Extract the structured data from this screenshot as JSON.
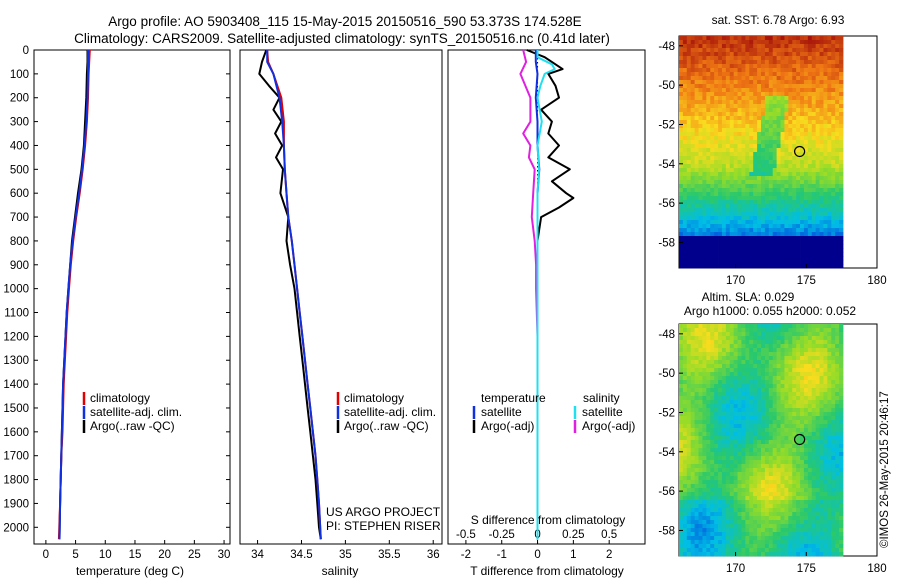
{
  "header": {
    "line1": "Argo profile: AO 5903408_115 15-May-2015 20150516_590 53.373S 174.528E",
    "line2": "Climatology: CARS2009. Satellite-adjusted climatology: synTS_20150516.nc (0.41d later)"
  },
  "side_caption": "©IMOS 26-May-2015 20:46:17",
  "depth_ticks": [
    0,
    100,
    200,
    300,
    400,
    500,
    600,
    700,
    800,
    900,
    1000,
    1100,
    1200,
    1300,
    1400,
    1500,
    1600,
    1700,
    1800,
    1900,
    2000
  ],
  "colors": {
    "climatology": "#e00000",
    "satellite": "#1030e0",
    "argo": "#000000",
    "satellite_s": "#20e0f0",
    "argo_s": "#e020e0"
  },
  "chart_data": [
    {
      "type": "line",
      "panel": "temperature",
      "xlabel": "temperature (deg C)",
      "xlim": [
        -2,
        31
      ],
      "xticks": [
        0,
        5,
        10,
        15,
        20,
        25,
        30
      ],
      "ylim": [
        0,
        2070
      ],
      "legend": [
        "climatology",
        "satellite-adj. clim.",
        "Argo(..raw -QC)"
      ],
      "legend_position": "lower-middle",
      "series": [
        {
          "name": "climatology",
          "color_key": "climatology",
          "x": [
            7.4,
            7.3,
            7.2,
            7.1,
            6.9,
            6.6,
            6.2,
            5.7,
            5.1,
            4.6,
            4.2,
            3.9,
            3.6,
            3.4,
            3.2,
            3.0,
            2.9,
            2.8,
            2.6,
            2.5,
            2.4,
            2.2
          ],
          "y": [
            0,
            50,
            100,
            200,
            300,
            400,
            500,
            600,
            700,
            800,
            900,
            1000,
            1100,
            1200,
            1300,
            1400,
            1500,
            1600,
            1700,
            1800,
            1900,
            2050
          ]
        },
        {
          "name": "satellite-adj. clim.",
          "color_key": "satellite",
          "x": [
            7.1,
            7.1,
            7.1,
            7.0,
            6.8,
            6.5,
            6.1,
            5.6,
            5.0,
            4.5,
            4.1,
            3.8,
            3.5,
            3.3,
            3.1,
            2.9,
            2.8,
            2.7,
            2.6,
            2.5,
            2.4,
            2.3
          ],
          "y": [
            0,
            50,
            100,
            200,
            300,
            400,
            500,
            600,
            700,
            800,
            900,
            1000,
            1100,
            1200,
            1300,
            1400,
            1500,
            1600,
            1700,
            1800,
            1900,
            2050
          ]
        },
        {
          "name": "Argo(..raw -QC)",
          "color_key": "argo",
          "x": [
            7.0,
            7.0,
            6.9,
            6.8,
            6.6,
            6.4,
            6.0,
            5.4,
            4.9,
            4.4,
            4.1,
            3.8,
            3.5,
            3.3,
            3.1,
            2.9,
            2.8,
            2.7,
            2.6,
            2.5,
            2.4,
            2.3
          ],
          "y": [
            0,
            50,
            100,
            200,
            300,
            400,
            500,
            600,
            700,
            800,
            900,
            1000,
            1100,
            1200,
            1300,
            1400,
            1500,
            1600,
            1700,
            1800,
            1900,
            2050
          ]
        }
      ]
    },
    {
      "type": "line",
      "panel": "salinity",
      "xlabel": "salinity",
      "xlim": [
        33.8,
        36.1
      ],
      "xticks": [
        34,
        34.5,
        35,
        35.5,
        36
      ],
      "ylim": [
        0,
        2070
      ],
      "legend": [
        "climatology",
        "satellite-adj. clim.",
        "Argo(..raw -QC)"
      ],
      "legend_position": "lower-middle",
      "annotation": [
        "US ARGO PROJECT",
        "PI: STEPHEN RISER"
      ],
      "series": [
        {
          "name": "climatology",
          "color_key": "climatology",
          "x": [
            34.11,
            34.12,
            34.18,
            34.27,
            34.3,
            34.3,
            34.31,
            34.33,
            34.35,
            34.39,
            34.42,
            34.45,
            34.48,
            34.51,
            34.54,
            34.57,
            34.6,
            34.63,
            34.66,
            34.68,
            34.7,
            34.72
          ],
          "y": [
            0,
            50,
            100,
            200,
            300,
            400,
            500,
            600,
            700,
            800,
            900,
            1000,
            1100,
            1200,
            1300,
            1400,
            1500,
            1600,
            1700,
            1800,
            1900,
            2050
          ]
        },
        {
          "name": "satellite-adj. clim.",
          "color_key": "satellite",
          "x": [
            34.11,
            34.11,
            34.18,
            34.25,
            34.28,
            34.3,
            34.31,
            34.33,
            34.35,
            34.39,
            34.42,
            34.45,
            34.48,
            34.51,
            34.54,
            34.57,
            34.6,
            34.63,
            34.66,
            34.68,
            34.7,
            34.72
          ],
          "y": [
            0,
            50,
            100,
            200,
            300,
            400,
            500,
            600,
            700,
            800,
            900,
            1000,
            1100,
            1200,
            1300,
            1400,
            1500,
            1600,
            1700,
            1800,
            1900,
            2050
          ]
        },
        {
          "name": "Argo(..raw -QC)",
          "color_key": "argo",
          "x": [
            34.1,
            34.05,
            34.02,
            34.13,
            34.25,
            34.18,
            34.27,
            34.2,
            34.28,
            34.21,
            34.29,
            34.26,
            34.35,
            34.33,
            34.37,
            34.42,
            34.45,
            34.48,
            34.51,
            34.54,
            34.57,
            34.6,
            34.63,
            34.66,
            34.68,
            34.7,
            34.72
          ],
          "y": [
            0,
            50,
            100,
            150,
            200,
            250,
            300,
            350,
            400,
            450,
            500,
            600,
            700,
            800,
            900,
            1000,
            1100,
            1200,
            1300,
            1400,
            1500,
            1600,
            1700,
            1800,
            1900,
            2000,
            2050
          ]
        }
      ]
    },
    {
      "type": "line",
      "panel": "difference",
      "xlabel": "T difference from climatology",
      "xlabel_top": "S difference from climatology",
      "xlim_T": [
        -2.5,
        3
      ],
      "xticks_T": [
        -2,
        -1,
        0,
        1,
        2
      ],
      "xlim_S": [
        -0.625,
        0.75
      ],
      "xticks_S": [
        -0.5,
        -0.25,
        0,
        0.25,
        0.5
      ],
      "xticklabels_S": [
        "-0.5",
        "-0.25",
        "0",
        "0.25",
        "0.5"
      ],
      "ylim": [
        0,
        2070
      ],
      "legend_left_title": "temperature",
      "legend_right_title": "salinity",
      "legend_left": [
        "satellite",
        "Argo(-adj)"
      ],
      "legend_right": [
        "satellite",
        "Argo(-adj)"
      ],
      "legend_position": "lower-middle",
      "series": [
        {
          "name": "temperature satellite",
          "color_key": "satellite",
          "axis": "T",
          "x": [
            -0.05,
            -0.05,
            0.0,
            -0.05,
            0.0,
            0.0,
            0.05,
            0.0,
            0.0,
            0.0,
            0.0,
            0.0,
            0.0,
            0.0,
            0.0,
            0.0,
            0.0,
            0.0,
            0.0,
            0.0,
            0.0
          ],
          "y": [
            0,
            50,
            100,
            200,
            300,
            400,
            500,
            600,
            700,
            800,
            900,
            1000,
            1100,
            1200,
            1300,
            1400,
            1500,
            1600,
            1700,
            1800,
            2050
          ]
        },
        {
          "name": "temperature Argo(-adj)",
          "color_key": "argo",
          "axis": "T",
          "x": [
            -0.3,
            0.2,
            0.7,
            0.3,
            0.5,
            0.6,
            0.1,
            0.4,
            0.3,
            0.6,
            0.3,
            0.9,
            0.4,
            0.8,
            1.0,
            0.6,
            0.1,
            0.0,
            0.0,
            0.0,
            0.0,
            0.0,
            0.0
          ],
          "y": [
            0,
            30,
            80,
            100,
            150,
            200,
            250,
            300,
            350,
            400,
            450,
            500,
            550,
            600,
            620,
            660,
            700,
            800,
            900,
            1000,
            1200,
            1600,
            2050
          ]
        },
        {
          "name": "salinity satellite",
          "color_key": "satellite_s",
          "axis": "S",
          "x": [
            0.0,
            0.0,
            0.1,
            0.12,
            0.05,
            0.02,
            0.0,
            0.03,
            0.0,
            0.01,
            0.0,
            0.0,
            0.0,
            0.0,
            0.0,
            0.0,
            0.0
          ],
          "y": [
            0,
            30,
            60,
            80,
            100,
            150,
            200,
            300,
            400,
            500,
            600,
            800,
            1000,
            1200,
            1400,
            1700,
            2050
          ]
        },
        {
          "name": "salinity Argo(-adj)",
          "color_key": "argo_s",
          "axis": "S",
          "x": [
            -0.1,
            -0.08,
            -0.12,
            -0.05,
            -0.05,
            -0.1,
            -0.05,
            -0.06,
            -0.02,
            -0.03,
            -0.04,
            -0.02,
            -0.01,
            -0.01,
            0.0,
            0.0,
            0.0
          ],
          "y": [
            0,
            50,
            100,
            200,
            300,
            350,
            400,
            450,
            500,
            600,
            700,
            800,
            900,
            1000,
            1200,
            1500,
            2050
          ]
        }
      ]
    },
    {
      "type": "heatmap",
      "panel": "map-sst",
      "title": "sat. SST: 6.78 Argo: 6.93",
      "xlim": [
        166,
        180
      ],
      "ylim": [
        -59.3,
        -47.5
      ],
      "xticks": [
        170,
        175,
        180
      ],
      "yticks": [
        -48,
        -50,
        -52,
        -54,
        -56,
        -58
      ],
      "float_position": {
        "lon": 174.528,
        "lat": -53.373
      },
      "field": "sea surface temperature"
    },
    {
      "type": "heatmap",
      "panel": "map-sla",
      "title_lines": [
        "Altim. SLA: 0.029",
        "Argo h1000: 0.055 h2000: 0.052"
      ],
      "xlim": [
        166,
        180
      ],
      "ylim": [
        -59.3,
        -47.5
      ],
      "xticks": [
        170,
        175,
        180
      ],
      "yticks": [
        -48,
        -50,
        -52,
        -54,
        -56,
        -58
      ],
      "float_position": {
        "lon": 174.528,
        "lat": -53.373
      },
      "field": "sea level anomaly"
    }
  ]
}
